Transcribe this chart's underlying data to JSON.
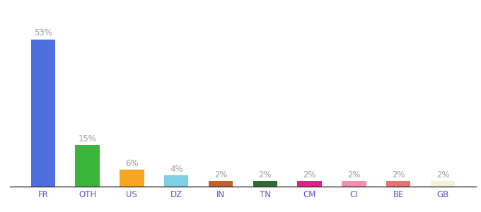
{
  "categories": [
    "FR",
    "OTH",
    "US",
    "DZ",
    "IN",
    "TN",
    "CM",
    "CI",
    "BE",
    "GB"
  ],
  "values": [
    53,
    15,
    6,
    4,
    2,
    2,
    2,
    2,
    2,
    2
  ],
  "bar_colors": [
    "#4d6fe0",
    "#3db53d",
    "#f5a623",
    "#7ecfe8",
    "#c0622a",
    "#2e6b2e",
    "#e91e8c",
    "#f48fb1",
    "#e57373",
    "#f5f0d8"
  ],
  "labels": [
    "53%",
    "15%",
    "6%",
    "4%",
    "2%",
    "2%",
    "2%",
    "2%",
    "2%",
    "2%"
  ],
  "ylim": [
    0,
    58
  ],
  "background_color": "#ffffff",
  "label_color": "#9e9e9e",
  "label_fontsize": 8.5,
  "tick_fontsize": 8.5,
  "tick_color": "#5555cc",
  "bar_width": 0.55
}
